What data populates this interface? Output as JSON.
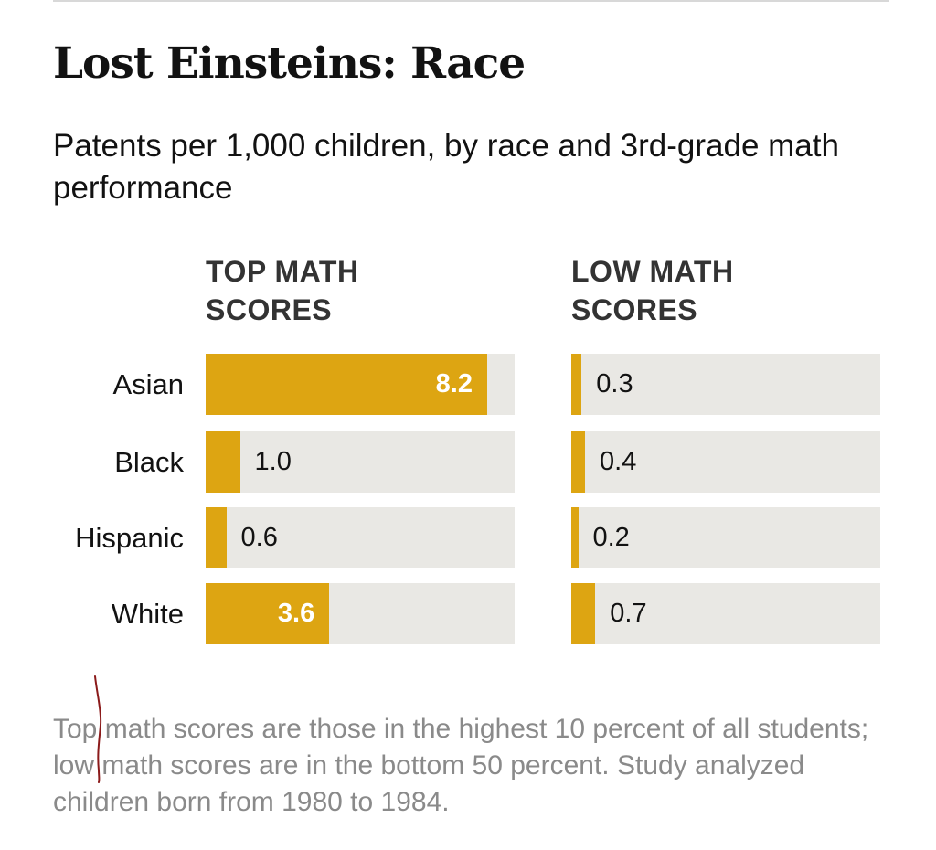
{
  "title": "Lost Einsteins: Race",
  "subtitle": "Patents per 1,000 children, by race and 3rd-grade math performance",
  "note": "Top math scores are those in the highest 10 percent of all students; low math scores are in the bottom 50 percent. Study analyzed children born from 1980 to 1984.",
  "colors": {
    "bar": "#dda512",
    "track": "#e9e8e4",
    "note_text": "#8a8a8a",
    "pen_mark": "#8b1a1a"
  },
  "chart_data": [
    {
      "type": "bar",
      "orientation": "horizontal",
      "panel_title": "TOP MATH SCORES",
      "categories": [
        "Asian",
        "Black",
        "Hispanic",
        "White"
      ],
      "values": [
        8.2,
        1.0,
        0.6,
        3.6
      ],
      "value_labels": [
        "8.2",
        "1.0",
        "0.6",
        "3.6"
      ],
      "xlim": [
        0,
        10
      ],
      "grid": false,
      "data_labels": true
    },
    {
      "type": "bar",
      "orientation": "horizontal",
      "panel_title": "LOW MATH SCORES",
      "categories": [
        "Asian",
        "Black",
        "Hispanic",
        "White"
      ],
      "values": [
        0.3,
        0.4,
        0.2,
        0.7
      ],
      "value_labels": [
        "0.3",
        "0.4",
        "0.2",
        "0.7"
      ],
      "xlim": [
        0,
        10
      ],
      "grid": false,
      "data_labels": true
    }
  ]
}
